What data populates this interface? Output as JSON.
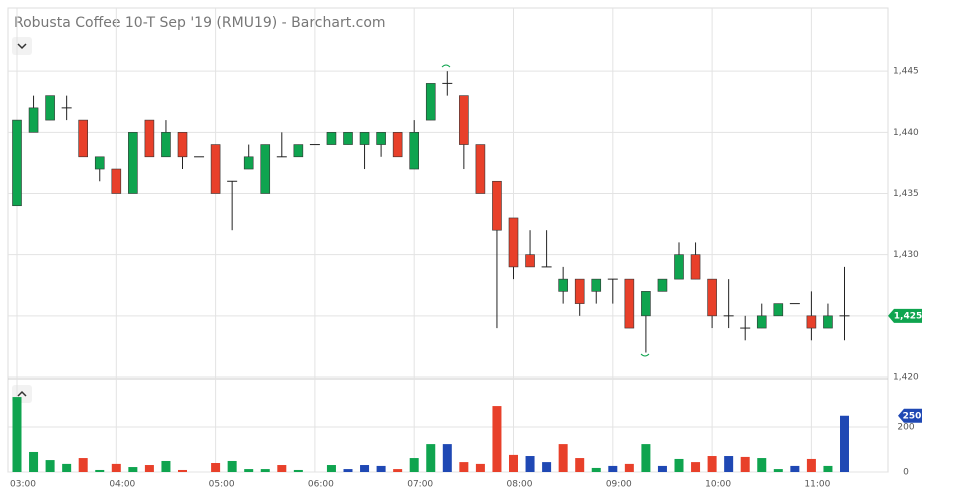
{
  "chart_data": {
    "type": "candlestick",
    "title": "Robusta Coffee 10-T Sep '19 (RMU19) - Barchart.com",
    "categories": [
      "03:00",
      null,
      null,
      null,
      null,
      null,
      "04:00",
      null,
      null,
      null,
      null,
      null,
      "05:00",
      null,
      null,
      null,
      null,
      null,
      "06:00",
      null,
      null,
      null,
      null,
      null,
      "07:00",
      null,
      null,
      null,
      null,
      null,
      "08:00",
      null,
      null,
      null,
      null,
      null,
      "09:00",
      null,
      null,
      null,
      null,
      null,
      "10:00",
      null,
      null,
      null,
      null,
      null,
      "11:00",
      null,
      null
    ],
    "open": [
      1434,
      1440,
      1441,
      1442,
      1441,
      1437,
      1437,
      1435,
      1441,
      1438,
      1440,
      1438,
      1439,
      1436,
      1437,
      1435,
      1438,
      1438,
      1439,
      1439,
      1439,
      1439,
      1439,
      1440,
      1437,
      1441,
      1444,
      1443,
      1439,
      1436,
      1433,
      1430,
      1429,
      1427,
      1428,
      1427,
      1428,
      1428,
      1425,
      1427,
      1428,
      1430,
      1428,
      1425,
      1424,
      1424,
      1425,
      1426,
      1425,
      1424,
      1425
    ],
    "high": [
      1441,
      1443,
      1443,
      1443,
      1441,
      1438,
      1437,
      1440,
      1441,
      1441,
      1440,
      1438,
      1439,
      1436,
      1439,
      1439,
      1440,
      1439,
      1439,
      1440,
      1440,
      1440,
      1440,
      1440,
      1441,
      1444,
      1445,
      1443,
      1439,
      1436,
      1433,
      1432,
      1432,
      1429,
      1428,
      1428,
      1428,
      1428,
      1427,
      1428,
      1431,
      1431,
      1428,
      1428,
      1425,
      1426,
      1426,
      1426,
      1427,
      1426,
      1429
    ],
    "low": [
      1434,
      1440,
      1441,
      1441,
      1438,
      1436,
      1435,
      1435,
      1438,
      1438,
      1437,
      1438,
      1435,
      1432,
      1437,
      1435,
      1438,
      1438,
      1439,
      1439,
      1439,
      1437,
      1438,
      1438,
      1437,
      1441,
      1443,
      1437,
      1435,
      1424,
      1428,
      1429,
      1429,
      1426,
      1425,
      1426,
      1426,
      1424,
      1422,
      1427,
      1428,
      1428,
      1424,
      1424,
      1423,
      1424,
      1425,
      1426,
      1423,
      1424,
      1423
    ],
    "close": [
      1441,
      1442,
      1443,
      1442,
      1438,
      1438,
      1435,
      1440,
      1438,
      1440,
      1438,
      1438,
      1435,
      1436,
      1438,
      1439,
      1438,
      1439,
      1439,
      1440,
      1440,
      1440,
      1440,
      1438,
      1440,
      1444,
      1444,
      1439,
      1435,
      1432,
      1429,
      1429,
      1429,
      1428,
      1426,
      1428,
      1428,
      1424,
      1427,
      1428,
      1430,
      1428,
      1425,
      1425,
      1424,
      1425,
      1426,
      1426,
      1424,
      1425,
      1425
    ],
    "colors": {
      "up": "#0fa44f",
      "down": "#e8402a",
      "flat": "#222222"
    },
    "ylim": [
      1420,
      1450
    ],
    "yticks": [
      {
        "value": 1420,
        "label": "1,420"
      },
      {
        "value": 1425,
        "label": "1,425"
      },
      {
        "value": 1430,
        "label": "1,430"
      },
      {
        "value": 1435,
        "label": "1,435"
      },
      {
        "value": 1440,
        "label": "1,440"
      },
      {
        "value": 1445,
        "label": "1,445"
      }
    ],
    "last_price": {
      "value": 1425,
      "label": "1,425"
    },
    "volume": [
      333,
      89,
      53,
      36,
      62,
      9,
      36,
      22,
      31,
      49,
      9,
      0,
      40,
      49,
      13,
      13,
      31,
      9,
      0,
      31,
      13,
      31,
      27,
      13,
      62,
      124,
      124,
      44,
      36,
      293,
      76,
      71,
      44,
      124,
      62,
      18,
      27,
      36,
      124,
      27,
      58,
      44,
      71,
      71,
      67,
      62,
      13,
      27,
      58,
      27,
      250
    ],
    "volume_colors": [
      "#0fa44f",
      "#0fa44f",
      "#0fa44f",
      "#0fa44f",
      "#e8402a",
      "#0fa44f",
      "#e8402a",
      "#0fa44f",
      "#e8402a",
      "#0fa44f",
      "#e8402a",
      "#1f48b4",
      "#e8402a",
      "#0fa44f",
      "#0fa44f",
      "#0fa44f",
      "#e8402a",
      "#0fa44f",
      "#1f48b4",
      "#0fa44f",
      "#1f48b4",
      "#1f48b4",
      "#1f48b4",
      "#e8402a",
      "#0fa44f",
      "#0fa44f",
      "#1f48b4",
      "#e8402a",
      "#e8402a",
      "#e8402a",
      "#e8402a",
      "#1f48b4",
      "#1f48b4",
      "#e8402a",
      "#e8402a",
      "#0fa44f",
      "#1f48b4",
      "#e8402a",
      "#0fa44f",
      "#1f48b4",
      "#0fa44f",
      "#e8402a",
      "#e8402a",
      "#1f48b4",
      "#e8402a",
      "#0fa44f",
      "#0fa44f",
      "#1f48b4",
      "#e8402a",
      "#0fa44f",
      "#1f48b4"
    ],
    "volume_ylim": [
      0,
      400
    ],
    "volume_yticks": [
      0,
      200
    ],
    "last_volume": {
      "value": 250,
      "label": "250",
      "color": "#1f48b4"
    },
    "grid": true
  }
}
